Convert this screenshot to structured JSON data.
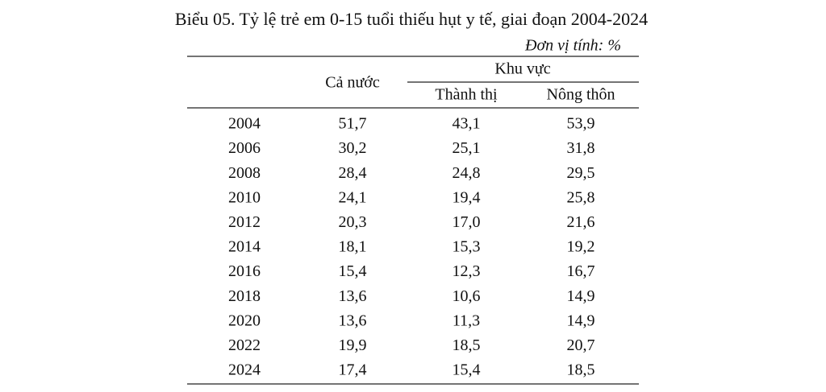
{
  "title": "Biểu 05. Tỷ lệ trẻ em 0-15 tuổi thiếu hụt y tế, giai đoạn 2004-2024",
  "unit": "Đơn vị tính: %",
  "table": {
    "header": {
      "national": "Cả nước",
      "region": "Khu vực",
      "urban": "Thành thị",
      "rural": "Nông thôn"
    },
    "rows": [
      [
        "2004",
        "51,7",
        "43,1",
        "53,9"
      ],
      [
        "2006",
        "30,2",
        "25,1",
        "31,8"
      ],
      [
        "2008",
        "28,4",
        "24,8",
        "29,5"
      ],
      [
        "2010",
        "24,1",
        "19,4",
        "25,8"
      ],
      [
        "2012",
        "20,3",
        "17,0",
        "21,6"
      ],
      [
        "2014",
        "18,1",
        "15,3",
        "19,2"
      ],
      [
        "2016",
        "15,4",
        "12,3",
        "16,7"
      ],
      [
        "2018",
        "13,6",
        "10,6",
        "14,9"
      ],
      [
        "2020",
        "13,6",
        "11,3",
        "14,9"
      ],
      [
        "2022",
        "19,9",
        "18,5",
        "20,7"
      ],
      [
        "2024",
        "17,4",
        "15,4",
        "18,5"
      ]
    ]
  }
}
